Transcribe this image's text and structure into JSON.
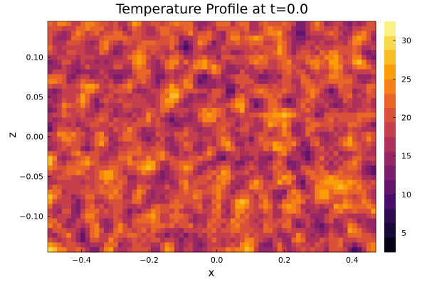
{
  "chart_data": {
    "type": "heatmap",
    "subtype": "filled-contour",
    "title": "Temperature Profile at t=0.0",
    "xlabel": "x",
    "ylabel": "z",
    "xlim": [
      -0.5,
      0.47
    ],
    "ylim": [
      -0.145,
      0.145
    ],
    "x_ticks": [
      -0.4,
      -0.2,
      0.0,
      0.2,
      0.4
    ],
    "x_tick_labels": [
      "−0.4",
      "−0.2",
      "0.0",
      "0.2",
      "0.4"
    ],
    "y_ticks": [
      -0.1,
      -0.05,
      0.0,
      0.05,
      0.1
    ],
    "y_tick_labels": [
      "−0.10",
      "−0.05",
      "0.00",
      "0.05",
      "0.10"
    ],
    "colorbar": {
      "range": [
        2.5,
        32.5
      ],
      "levels": [
        2.5,
        4.4,
        6.3,
        8.1,
        10.0,
        11.9,
        13.8,
        15.6,
        17.5,
        19.4,
        21.3,
        23.1,
        25.0,
        26.9,
        28.8,
        30.6,
        32.5
      ],
      "ticks": [
        5,
        10,
        15,
        20,
        25,
        30
      ],
      "tick_labels": [
        "5",
        "10",
        "15",
        "20",
        "25",
        "30"
      ],
      "colormap": "inferno",
      "stops": [
        "#000004",
        "#1b0c41",
        "#4a0c6b",
        "#781c6d",
        "#a52c60",
        "#cf4446",
        "#ed6925",
        "#fb9b06",
        "#f7d13d",
        "#fcffa4"
      ]
    },
    "grid": false,
    "field_description": "random noise temperature field, mostly 12-25 with cold spots near 3 and hot spots near 32"
  }
}
